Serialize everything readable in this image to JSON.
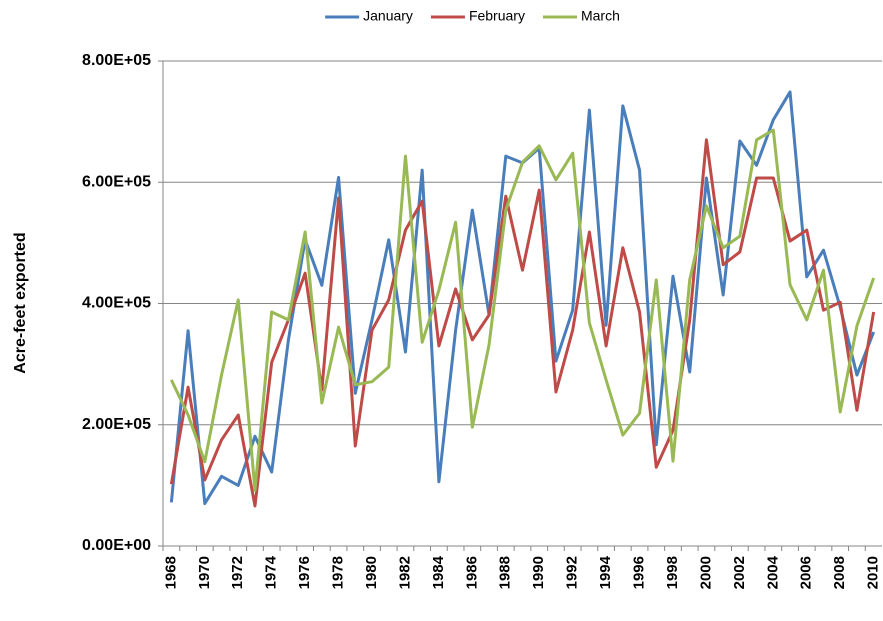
{
  "chart_data": {
    "type": "line",
    "y_label": "Acre-feet exported",
    "categories": [
      "1968",
      null,
      "1970",
      null,
      "1972",
      null,
      "1974",
      null,
      "1976",
      null,
      "1978",
      null,
      "1980",
      null,
      "1982",
      null,
      "1984",
      null,
      "1986",
      null,
      "1988",
      null,
      "1990",
      null,
      "1992",
      null,
      "1994",
      null,
      "1996",
      null,
      "1998",
      null,
      "2000",
      null,
      "2002",
      null,
      "2004",
      null,
      "2006",
      null,
      "2008",
      null,
      "2010"
    ],
    "series": [
      {
        "name": "January",
        "color": "#4a7ebb",
        "values": [
          72000,
          355000,
          70000,
          115000,
          100000,
          181000,
          122000,
          340000,
          505000,
          430000,
          608000,
          252000,
          373000,
          505000,
          320000,
          620000,
          106000,
          356000,
          554000,
          381000,
          643000,
          632000,
          656000,
          305000,
          389000,
          719000,
          364000,
          726000,
          620000,
          167000,
          445000,
          287000,
          607000,
          414000,
          668000,
          628000,
          703000,
          749000,
          444000,
          488000,
          394000,
          282000,
          353000
        ]
      },
      {
        "name": "February",
        "color": "#be4b48",
        "values": [
          102000,
          262000,
          109000,
          175000,
          216000,
          66000,
          303000,
          373000,
          450000,
          257000,
          574000,
          165000,
          356000,
          406000,
          521000,
          569000,
          330000,
          424000,
          340000,
          381000,
          577000,
          455000,
          587000,
          254000,
          356000,
          518000,
          330000,
          492000,
          386000,
          130000,
          191000,
          373000,
          670000,
          464000,
          485000,
          607000,
          607000,
          503000,
          521000,
          389000,
          402000,
          224000,
          386000
        ]
      },
      {
        "name": "March",
        "color": "#98b954",
        "values": [
          274000,
          216000,
          139000,
          282000,
          406000,
          92000,
          386000,
          373000,
          518000,
          236000,
          361000,
          266000,
          271000,
          295000,
          643000,
          336000,
          422000,
          534000,
          196000,
          332000,
          554000,
          633000,
          660000,
          604000,
          648000,
          368000,
          274000,
          183000,
          219000,
          439000,
          140000,
          439000,
          561000,
          492000,
          511000,
          670000,
          686000,
          431000,
          373000,
          455000,
          221000,
          363000,
          442000
        ]
      }
    ],
    "ylim": [
      0,
      800000
    ],
    "yticks": [
      {
        "value": 0,
        "label": "0.00E+00"
      },
      {
        "value": 200000,
        "label": "2.00E+05"
      },
      {
        "value": 400000,
        "label": "4.00E+05"
      },
      {
        "value": 600000,
        "label": "6.00E+05"
      },
      {
        "value": 800000,
        "label": "8.00E+05"
      }
    ],
    "grid": true,
    "legend": "top"
  }
}
